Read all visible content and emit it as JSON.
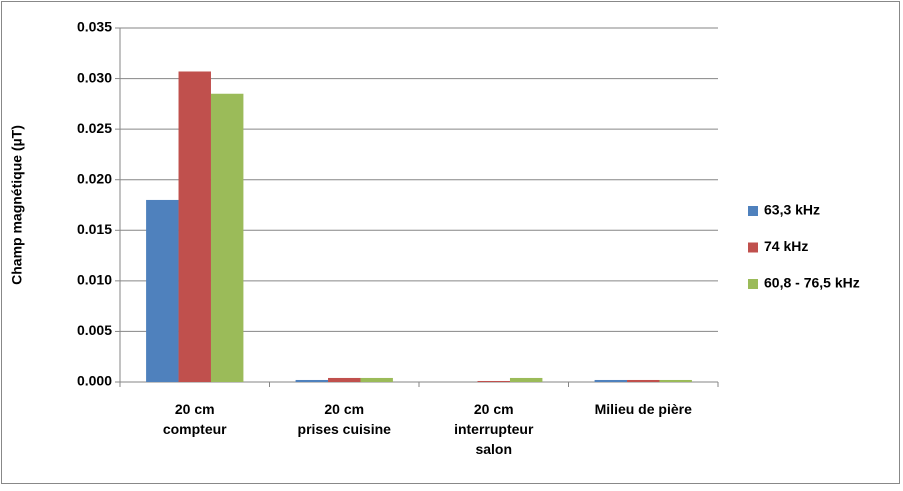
{
  "chart_data": {
    "type": "bar",
    "y_label": "Champ magnétique (µT)",
    "categories": [
      "20 cm\ncompteur",
      "20 cm\nprises cuisine",
      "20 cm\ninterrupteur\nsalon",
      "Milieu de pière"
    ],
    "series": [
      {
        "name": "63,3 kHz",
        "color": "#4f81bd",
        "values": [
          0.018,
          0.0002,
          0,
          0.0002
        ]
      },
      {
        "name": "74 kHz",
        "color": "#c0504d",
        "values": [
          0.0307,
          0.0004,
          0.0001,
          0.0002
        ]
      },
      {
        "name": "60,8 - 76,5 kHz",
        "color": "#9bbb59",
        "values": [
          0.0285,
          0.0004,
          0.0004,
          0.0002
        ]
      }
    ],
    "ylim": [
      0,
      0.035
    ],
    "yticks": [
      {
        "value": 0,
        "label": "0.000"
      },
      {
        "value": 0.005,
        "label": "0.005"
      },
      {
        "value": 0.01,
        "label": "0.010"
      },
      {
        "value": 0.015,
        "label": "0.015"
      },
      {
        "value": 0.02,
        "label": "0.020"
      },
      {
        "value": 0.025,
        "label": "0.025"
      },
      {
        "value": 0.03,
        "label": "0.030"
      },
      {
        "value": 0.035,
        "label": "0.035"
      }
    ],
    "grid": true,
    "legend": "right"
  }
}
